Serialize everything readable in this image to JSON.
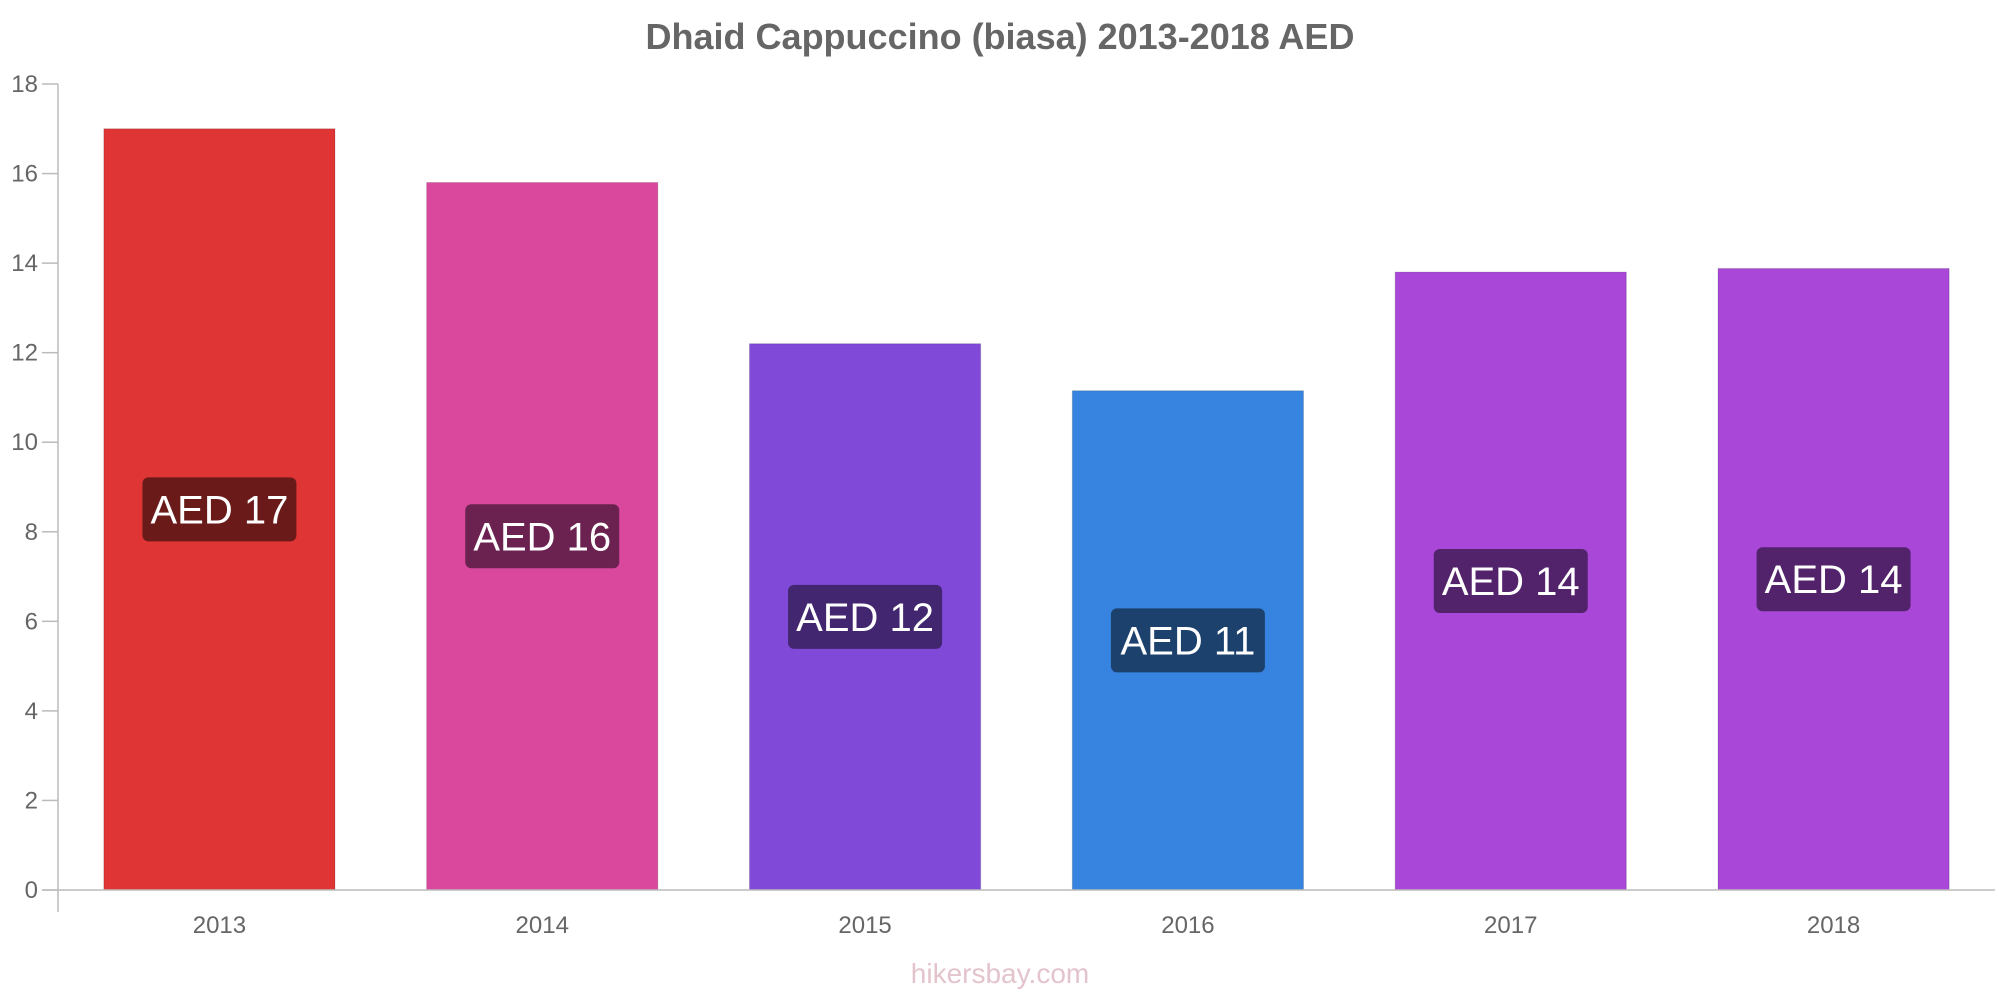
{
  "title": "Dhaid Cappuccino (biasa) 2013-2018 AED",
  "watermark": "hikersbay.com",
  "chart_data": {
    "type": "bar",
    "title": "Dhaid Cappuccino (biasa) 2013-2018 AED",
    "xlabel": "",
    "ylabel": "",
    "categories": [
      "2013",
      "2014",
      "2015",
      "2016",
      "2017",
      "2018"
    ],
    "values": [
      17.0,
      15.8,
      12.2,
      11.15,
      13.8,
      13.88
    ],
    "data_labels": [
      "AED 17",
      "AED 16",
      "AED 12",
      "AED 11",
      "AED 14",
      "AED 14"
    ],
    "ylim": [
      0,
      18
    ],
    "yticks": [
      0,
      2,
      4,
      6,
      8,
      10,
      12,
      14,
      16,
      18
    ],
    "grid": false,
    "legend": "none",
    "bar_colors": [
      "#e03535",
      "#d9489c",
      "#8049d8",
      "#3684e0",
      "#a947d8",
      "#a947d8"
    ],
    "label_bg_colors": [
      "#6b1a1a",
      "#6b2250",
      "#42266f",
      "#1c416d",
      "#52236b",
      "#52236b"
    ]
  }
}
